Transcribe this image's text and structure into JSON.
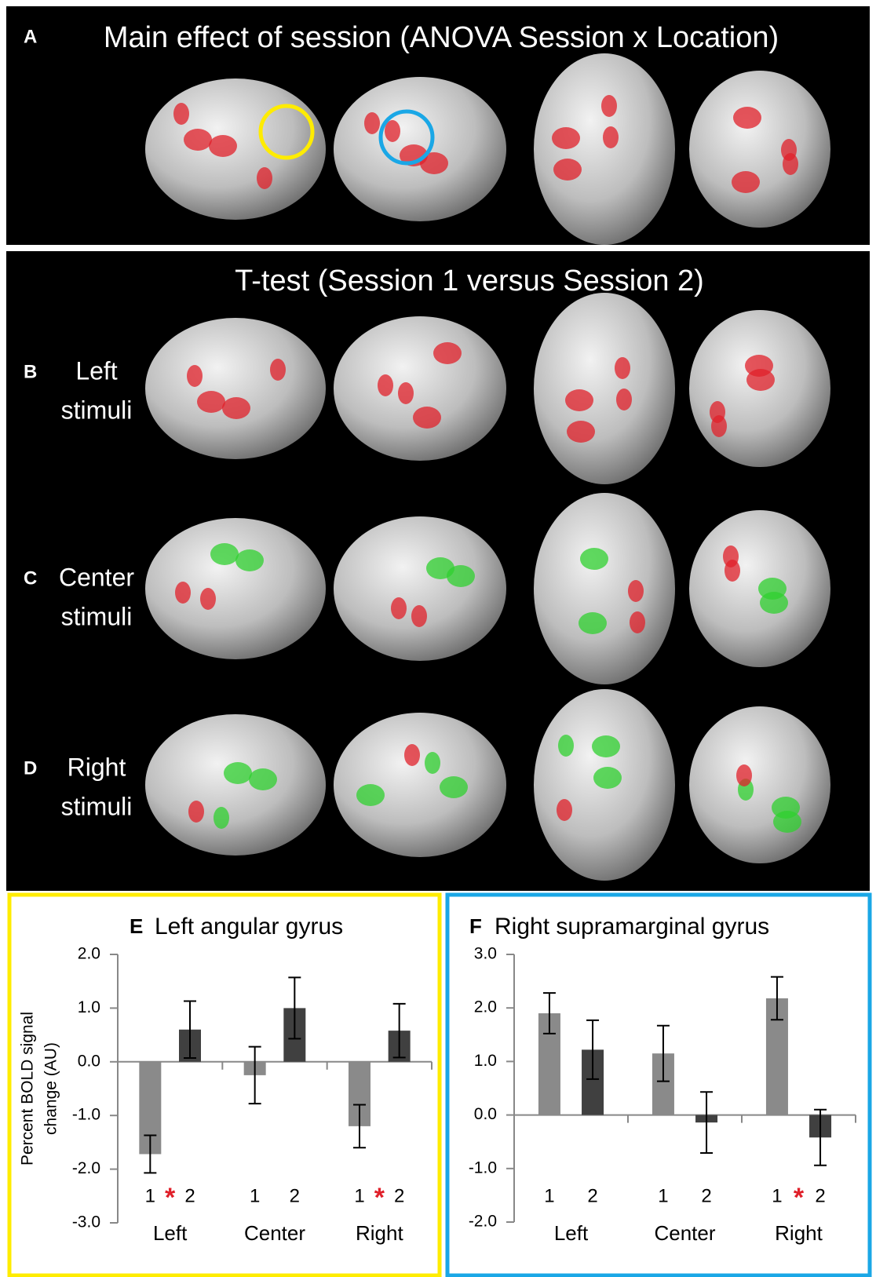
{
  "panel_a": {
    "letter": "A",
    "title": "Main effect of session (ANOVA Session x Location)"
  },
  "ttest_title": "T-test (Session 1 versus Session 2)",
  "rows": [
    {
      "letter": "B",
      "label": [
        "Left",
        "stimuli"
      ]
    },
    {
      "letter": "C",
      "label": [
        "Center",
        "stimuli"
      ]
    },
    {
      "letter": "D",
      "label": [
        "Right",
        "stimuli"
      ]
    }
  ],
  "chart_data": [
    {
      "type": "bar",
      "letter": "E",
      "title": "Left angular gyrus",
      "y_label": [
        "Percent BOLD signal",
        "change (AU)"
      ],
      "categories": [
        "Left",
        "Center",
        "Right"
      ],
      "significance": [
        "*",
        null,
        "*"
      ],
      "series": [
        {
          "name": "1",
          "color": "#8a8a8a",
          "values": [
            -1.72,
            -0.25,
            -1.2
          ],
          "errors": [
            0.35,
            0.53,
            0.4
          ]
        },
        {
          "name": "2",
          "color": "#404040",
          "values": [
            0.6,
            1.0,
            0.58
          ],
          "errors": [
            0.53,
            0.57,
            0.5
          ]
        }
      ],
      "ylim": [
        -3,
        2
      ],
      "yticks": [
        {
          "value": -3,
          "label": "-3.0"
        },
        {
          "value": -2,
          "label": "-2.0"
        },
        {
          "value": -1,
          "label": "-1.0"
        },
        {
          "value": 0,
          "label": "0.0"
        },
        {
          "value": 1,
          "label": "1.0"
        },
        {
          "value": 2,
          "label": "2.0"
        }
      ]
    },
    {
      "type": "bar",
      "letter": "F",
      "title": "Right supramarginal gyrus",
      "categories": [
        "Left",
        "Center",
        "Right"
      ],
      "significance": [
        null,
        null,
        "*"
      ],
      "series": [
        {
          "name": "1",
          "color": "#8a8a8a",
          "values": [
            1.9,
            1.15,
            2.18
          ],
          "errors": [
            0.38,
            0.52,
            0.4
          ]
        },
        {
          "name": "2",
          "color": "#404040",
          "values": [
            1.22,
            -0.14,
            -0.42
          ],
          "errors": [
            0.55,
            0.57,
            0.52
          ]
        }
      ],
      "ylim": [
        -2,
        3
      ],
      "yticks": [
        {
          "value": -2,
          "label": "-2.0"
        },
        {
          "value": -1,
          "label": "-1.0"
        },
        {
          "value": 0,
          "label": "0.0"
        },
        {
          "value": 1,
          "label": "1.0"
        },
        {
          "value": 2,
          "label": "2.0"
        },
        {
          "value": 3,
          "label": "3.0"
        }
      ]
    }
  ]
}
